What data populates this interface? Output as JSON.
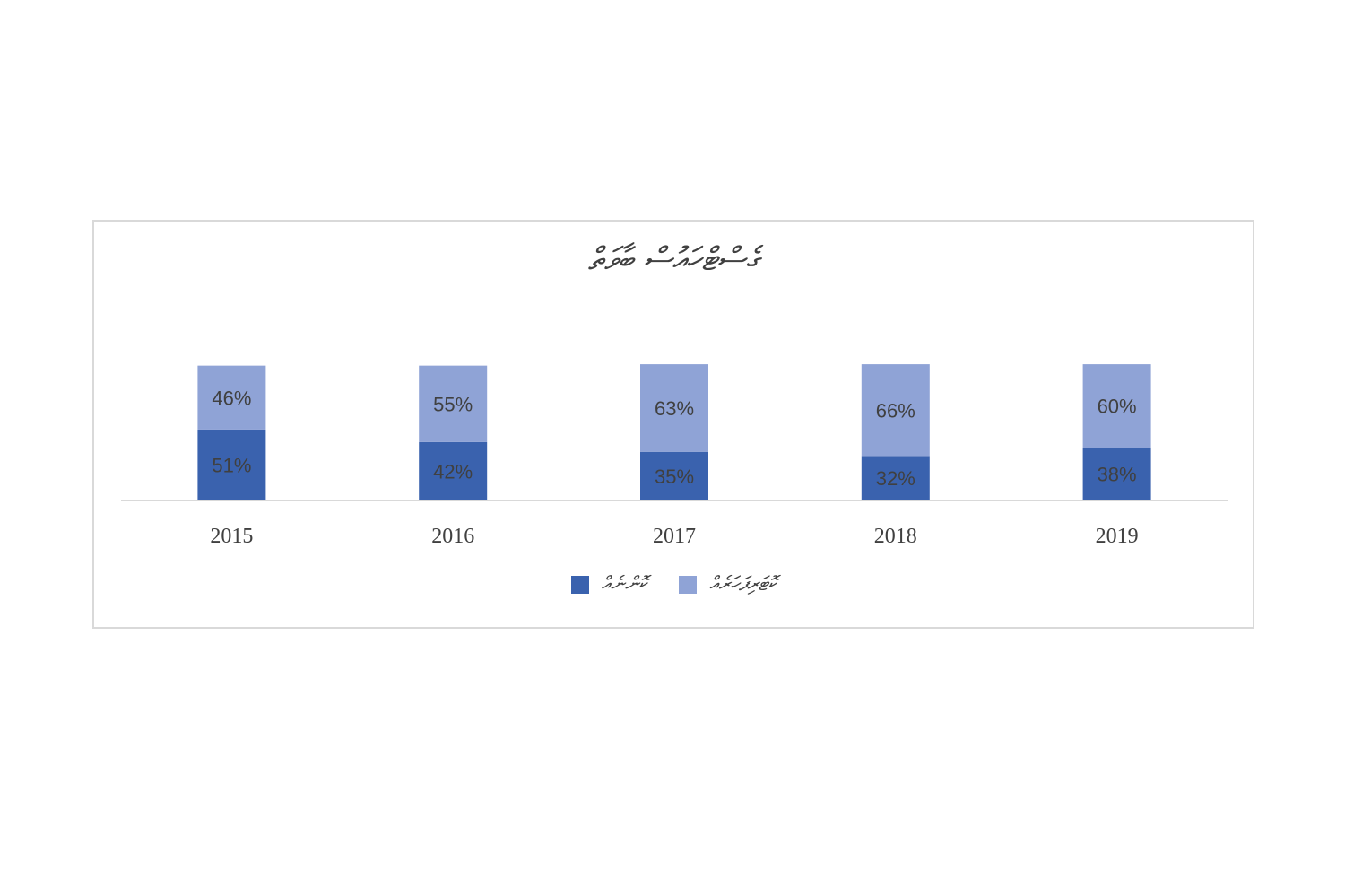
{
  "chart_data": {
    "type": "bar",
    "stacked": true,
    "title": "ގެސްޓްހައުސް ބާވަތް",
    "categories": [
      "2015",
      "2016",
      "2017",
      "2018",
      "2019"
    ],
    "series": [
      {
        "name": "ކޮންނެއް",
        "color": "#3a62ae",
        "values": [
          51,
          42,
          35,
          32,
          38
        ],
        "labels": [
          "51%",
          "42%",
          "35%",
          "32%",
          "38%"
        ]
      },
      {
        "name": "ކޮޓަރިފަހަރެއް",
        "color": "#8fa3d6",
        "values": [
          46,
          55,
          63,
          66,
          60
        ],
        "labels": [
          "46%",
          "55%",
          "63%",
          "66%",
          "60%"
        ]
      }
    ],
    "grid": false,
    "legend": "bottom"
  }
}
